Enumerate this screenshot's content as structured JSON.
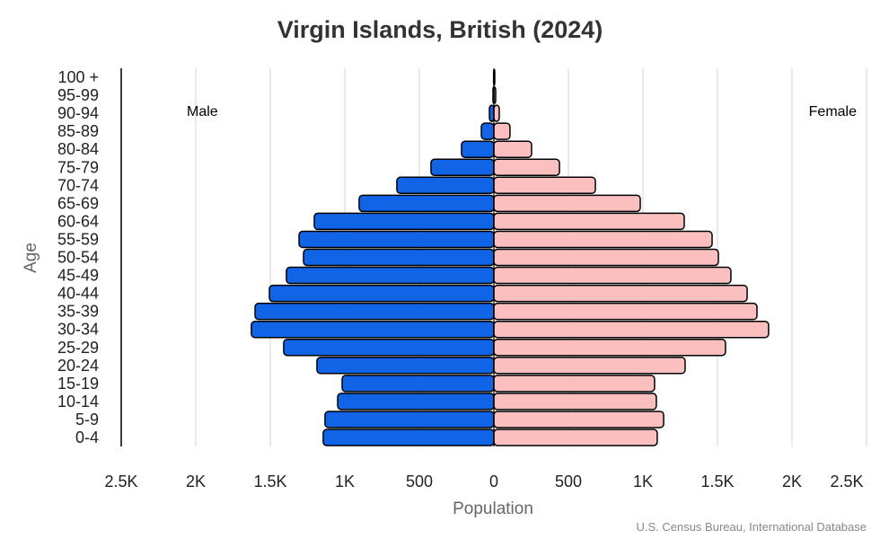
{
  "chart_data": {
    "type": "bar",
    "orientation": "horizontal-pyramid",
    "title": "Virgin Islands, British (2024)",
    "xlabel": "Population",
    "ylabel": "Age",
    "source": "U.S. Census Bureau, International Database",
    "categories": [
      "0-4",
      "5-9",
      "10-14",
      "15-19",
      "20-24",
      "25-29",
      "30-34",
      "35-39",
      "40-44",
      "45-49",
      "50-54",
      "55-59",
      "60-64",
      "65-69",
      "70-74",
      "75-79",
      "80-84",
      "85-89",
      "90-94",
      "95-99",
      "100 +"
    ],
    "series": [
      {
        "name": "Male",
        "color": "#1264e6",
        "values": [
          1145,
          1133,
          1048,
          1018,
          1187,
          1410,
          1627,
          1602,
          1506,
          1392,
          1277,
          1307,
          1205,
          904,
          651,
          422,
          217,
          84,
          30,
          6,
          2
        ]
      },
      {
        "name": "Female",
        "color": "#fbbfc0",
        "values": [
          1096,
          1139,
          1090,
          1078,
          1283,
          1554,
          1843,
          1765,
          1699,
          1590,
          1506,
          1464,
          1277,
          982,
          681,
          440,
          253,
          108,
          36,
          12,
          3
        ]
      }
    ],
    "xlim": [
      -2500,
      2500
    ],
    "xticks": [
      -2500,
      -2000,
      -1500,
      -1000,
      -500,
      0,
      500,
      1000,
      1500,
      2000,
      2500
    ],
    "xtick_labels": [
      "2.5K",
      "2K",
      "1.5K",
      "1K",
      "500",
      "0",
      "500",
      "1K",
      "1.5K",
      "2K",
      "2.5K"
    ],
    "grid": true
  }
}
